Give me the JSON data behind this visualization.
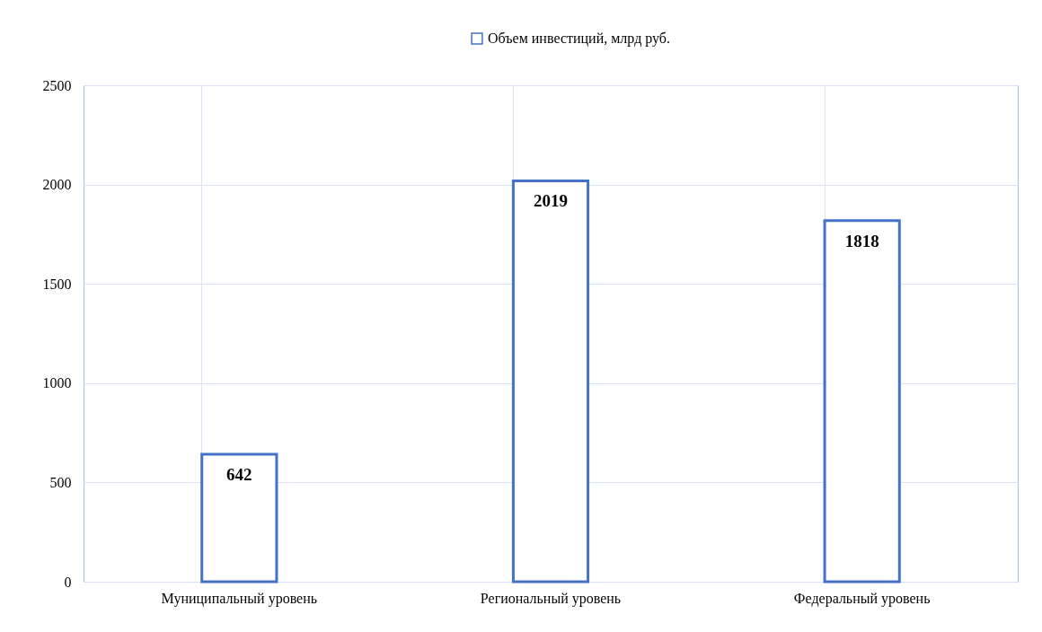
{
  "chart_data": {
    "type": "bar",
    "categories": [
      "Муниципальный уровень",
      "Региональный уровень",
      "Федеральный уровень"
    ],
    "series": [
      {
        "name": "Объем инвестиций, млрд руб.",
        "color": "#4472c4",
        "values": [
          642,
          2019,
          1818
        ]
      }
    ],
    "ylim": [
      0,
      2500
    ],
    "yticks": [
      0,
      500,
      1000,
      1500,
      2000,
      2500
    ],
    "grid": true,
    "legend": "top",
    "data_labels": true
  }
}
